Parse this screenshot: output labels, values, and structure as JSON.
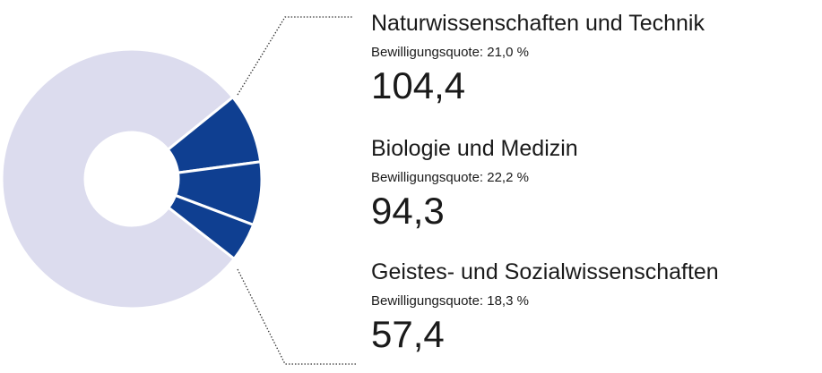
{
  "chart_data": {
    "type": "pie",
    "variant": "donut",
    "unit_note": "",
    "colors": {
      "highlight": "#0f3f91",
      "remainder": "#dcdcee",
      "text": "#1a1a1a"
    },
    "slices": [
      {
        "name": "Naturwissenschaften und Technik",
        "value": 104.4,
        "value_label": "104,4",
        "quota_label": "Bewilligungsquote: 21,0 %"
      },
      {
        "name": "Biologie und Medizin",
        "value": 94.3,
        "value_label": "94,3",
        "quota_label": "Bewilligungsquote: 22,2 %"
      },
      {
        "name": "Geistes- und Sozialwissenschaften",
        "value": 57.4,
        "value_label": "57,4",
        "quota_label": "Bewilligungsquote: 18,3 %"
      }
    ],
    "remainder_value": 941
  }
}
